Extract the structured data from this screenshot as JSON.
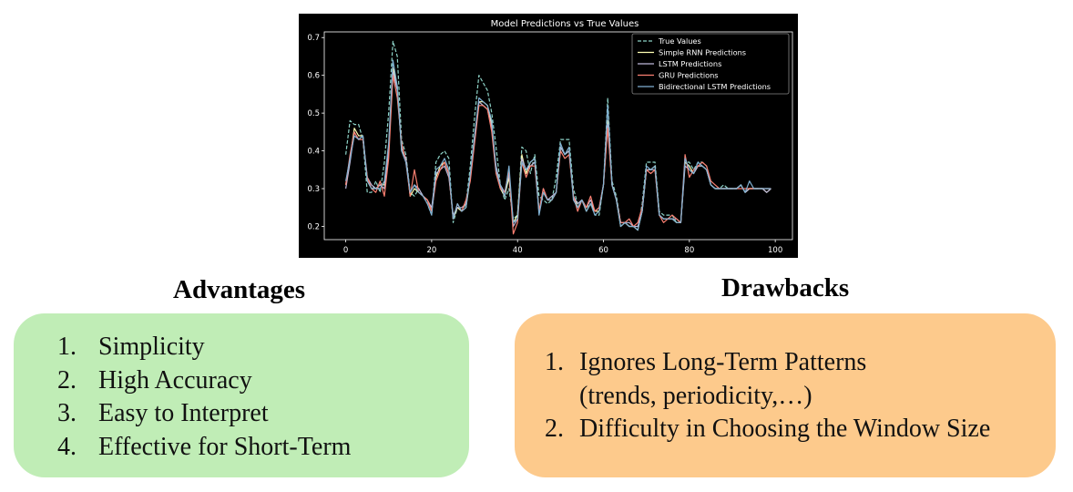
{
  "chart_data": {
    "type": "line",
    "title": "Model Predictions vs True Values",
    "xlabel": "",
    "ylabel": "",
    "xlim": [
      -5,
      104
    ],
    "ylim": [
      0.165,
      0.715
    ],
    "x_ticks": [
      0,
      20,
      40,
      60,
      80,
      100
    ],
    "y_ticks": [
      0.2,
      0.3,
      0.4,
      0.5,
      0.6,
      0.7
    ],
    "grid": false,
    "legend_position": "top-right",
    "background": "#000000",
    "x": [
      0,
      1,
      2,
      3,
      4,
      5,
      6,
      7,
      8,
      9,
      10,
      11,
      12,
      13,
      14,
      15,
      16,
      17,
      18,
      19,
      20,
      21,
      22,
      23,
      24,
      25,
      26,
      27,
      28,
      29,
      30,
      31,
      32,
      33,
      34,
      35,
      36,
      37,
      38,
      39,
      40,
      41,
      42,
      43,
      44,
      45,
      46,
      47,
      48,
      49,
      50,
      51,
      52,
      53,
      54,
      55,
      56,
      57,
      58,
      59,
      60,
      61,
      62,
      63,
      64,
      65,
      66,
      67,
      68,
      69,
      70,
      71,
      72,
      73,
      74,
      75,
      76,
      77,
      78,
      79,
      80,
      81,
      82,
      83,
      84,
      85,
      86,
      87,
      88,
      89,
      90,
      91,
      92,
      93,
      94,
      95,
      96,
      97,
      98,
      99
    ],
    "series": [
      {
        "name": "True Values",
        "color": "#8dd3c7",
        "dash": true,
        "values": [
          0.39,
          0.48,
          0.47,
          0.47,
          0.43,
          0.29,
          0.29,
          0.32,
          0.29,
          0.37,
          0.5,
          0.69,
          0.65,
          0.43,
          0.39,
          0.29,
          0.28,
          0.3,
          0.28,
          0.26,
          0.23,
          0.37,
          0.39,
          0.4,
          0.38,
          0.21,
          0.25,
          0.24,
          0.26,
          0.36,
          0.49,
          0.6,
          0.58,
          0.56,
          0.5,
          0.41,
          0.31,
          0.27,
          0.3,
          0.22,
          0.23,
          0.41,
          0.4,
          0.34,
          0.39,
          0.28,
          0.27,
          0.26,
          0.27,
          0.33,
          0.43,
          0.43,
          0.43,
          0.3,
          0.26,
          0.27,
          0.25,
          0.26,
          0.23,
          0.23,
          0.31,
          0.54,
          0.32,
          0.28,
          0.21,
          0.21,
          0.2,
          0.2,
          0.19,
          0.26,
          0.37,
          0.37,
          0.37,
          0.24,
          0.23,
          0.23,
          0.23,
          0.21,
          0.21,
          0.37,
          0.37,
          0.35,
          0.37,
          0.37,
          0.36,
          0.31,
          0.3,
          0.3,
          0.31,
          0.3,
          0.3,
          0.3,
          0.31,
          0.29,
          0.3,
          0.3,
          0.3,
          0.3,
          0.3,
          0.3
        ]
      },
      {
        "name": "Simple RNN Predictions",
        "color": "#ffffb3",
        "dash": false,
        "values": [
          0.31,
          0.38,
          0.46,
          0.44,
          0.44,
          0.32,
          0.3,
          0.3,
          0.31,
          0.31,
          0.41,
          0.62,
          0.57,
          0.4,
          0.38,
          0.28,
          0.3,
          0.29,
          0.28,
          0.27,
          0.24,
          0.33,
          0.36,
          0.37,
          0.34,
          0.22,
          0.25,
          0.24,
          0.25,
          0.33,
          0.43,
          0.53,
          0.53,
          0.52,
          0.47,
          0.35,
          0.3,
          0.28,
          0.33,
          0.21,
          0.23,
          0.39,
          0.34,
          0.37,
          0.38,
          0.24,
          0.29,
          0.27,
          0.27,
          0.29,
          0.41,
          0.39,
          0.4,
          0.28,
          0.25,
          0.27,
          0.24,
          0.26,
          0.24,
          0.24,
          0.31,
          0.48,
          0.31,
          0.27,
          0.2,
          0.21,
          0.2,
          0.2,
          0.19,
          0.24,
          0.35,
          0.35,
          0.36,
          0.23,
          0.22,
          0.22,
          0.22,
          0.21,
          0.21,
          0.37,
          0.36,
          0.34,
          0.36,
          0.36,
          0.35,
          0.31,
          0.3,
          0.3,
          0.3,
          0.3,
          0.3,
          0.3,
          0.31,
          0.29,
          0.3,
          0.3,
          0.3,
          0.3,
          0.29,
          0.3
        ]
      },
      {
        "name": "LSTM Predictions",
        "color": "#bebada",
        "dash": false,
        "values": [
          0.3,
          0.37,
          0.45,
          0.43,
          0.44,
          0.33,
          0.31,
          0.3,
          0.31,
          0.3,
          0.4,
          0.61,
          0.56,
          0.41,
          0.38,
          0.29,
          0.31,
          0.3,
          0.28,
          0.27,
          0.25,
          0.34,
          0.35,
          0.36,
          0.33,
          0.23,
          0.25,
          0.25,
          0.26,
          0.33,
          0.44,
          0.53,
          0.52,
          0.51,
          0.46,
          0.36,
          0.31,
          0.29,
          0.34,
          0.2,
          0.22,
          0.38,
          0.35,
          0.36,
          0.37,
          0.24,
          0.3,
          0.27,
          0.28,
          0.29,
          0.41,
          0.39,
          0.4,
          0.28,
          0.26,
          0.27,
          0.25,
          0.27,
          0.24,
          0.25,
          0.31,
          0.47,
          0.31,
          0.27,
          0.21,
          0.21,
          0.21,
          0.2,
          0.2,
          0.24,
          0.35,
          0.35,
          0.35,
          0.23,
          0.22,
          0.22,
          0.22,
          0.22,
          0.21,
          0.36,
          0.35,
          0.34,
          0.36,
          0.36,
          0.35,
          0.31,
          0.3,
          0.3,
          0.3,
          0.3,
          0.3,
          0.3,
          0.31,
          0.29,
          0.3,
          0.3,
          0.3,
          0.3,
          0.29,
          0.3
        ]
      },
      {
        "name": "GRU Predictions",
        "color": "#fb8072",
        "dash": false,
        "values": [
          0.31,
          0.39,
          0.45,
          0.43,
          0.43,
          0.33,
          0.3,
          0.29,
          0.32,
          0.28,
          0.38,
          0.6,
          0.54,
          0.42,
          0.37,
          0.28,
          0.35,
          0.29,
          0.28,
          0.27,
          0.24,
          0.32,
          0.35,
          0.37,
          0.34,
          0.22,
          0.26,
          0.24,
          0.27,
          0.32,
          0.42,
          0.52,
          0.52,
          0.51,
          0.45,
          0.34,
          0.3,
          0.29,
          0.35,
          0.18,
          0.21,
          0.37,
          0.33,
          0.36,
          0.36,
          0.24,
          0.3,
          0.27,
          0.27,
          0.29,
          0.4,
          0.38,
          0.39,
          0.28,
          0.24,
          0.27,
          0.25,
          0.28,
          0.24,
          0.25,
          0.31,
          0.46,
          0.31,
          0.27,
          0.21,
          0.21,
          0.22,
          0.2,
          0.21,
          0.25,
          0.35,
          0.34,
          0.35,
          0.23,
          0.21,
          0.22,
          0.23,
          0.22,
          0.21,
          0.39,
          0.33,
          0.35,
          0.36,
          0.37,
          0.36,
          0.32,
          0.31,
          0.3,
          0.3,
          0.3,
          0.3,
          0.3,
          0.3,
          0.3,
          0.3,
          0.3,
          0.3,
          0.3,
          0.3,
          0.3
        ]
      },
      {
        "name": "Bidirectional LSTM Predictions",
        "color": "#80b1d3",
        "dash": false,
        "values": [
          0.32,
          0.38,
          0.44,
          0.43,
          0.44,
          0.32,
          0.3,
          0.3,
          0.3,
          0.32,
          0.42,
          0.64,
          0.57,
          0.4,
          0.37,
          0.29,
          0.31,
          0.29,
          0.28,
          0.26,
          0.23,
          0.35,
          0.36,
          0.38,
          0.35,
          0.22,
          0.26,
          0.24,
          0.25,
          0.34,
          0.44,
          0.54,
          0.53,
          0.52,
          0.48,
          0.35,
          0.31,
          0.28,
          0.36,
          0.21,
          0.22,
          0.37,
          0.35,
          0.37,
          0.38,
          0.23,
          0.29,
          0.27,
          0.27,
          0.29,
          0.42,
          0.39,
          0.41,
          0.27,
          0.25,
          0.27,
          0.24,
          0.26,
          0.23,
          0.24,
          0.31,
          0.52,
          0.31,
          0.27,
          0.2,
          0.21,
          0.2,
          0.2,
          0.19,
          0.24,
          0.36,
          0.35,
          0.36,
          0.23,
          0.22,
          0.22,
          0.22,
          0.21,
          0.21,
          0.38,
          0.35,
          0.34,
          0.37,
          0.36,
          0.35,
          0.31,
          0.3,
          0.3,
          0.3,
          0.3,
          0.3,
          0.3,
          0.31,
          0.29,
          0.32,
          0.3,
          0.3,
          0.3,
          0.3,
          0.3
        ]
      }
    ]
  },
  "advantages": {
    "title": "Advantages",
    "box_color": "#c0edb6",
    "items": [
      {
        "num": "1.",
        "text": "Simplicity"
      },
      {
        "num": "2.",
        "text": "High Accuracy"
      },
      {
        "num": "3.",
        "text": "Easy to Interpret"
      },
      {
        "num": "4.",
        "text": "Effective for Short-Term"
      }
    ]
  },
  "drawbacks": {
    "title": "Drawbacks",
    "box_color": "#fdca8c",
    "items": [
      {
        "num": "1.",
        "text": "Ignores Long-Term Patterns"
      },
      {
        "num": "",
        "text": "(trends, periodicity,…)"
      },
      {
        "num": "2.",
        "text": "Difficulty in Choosing the Window Size"
      }
    ]
  }
}
